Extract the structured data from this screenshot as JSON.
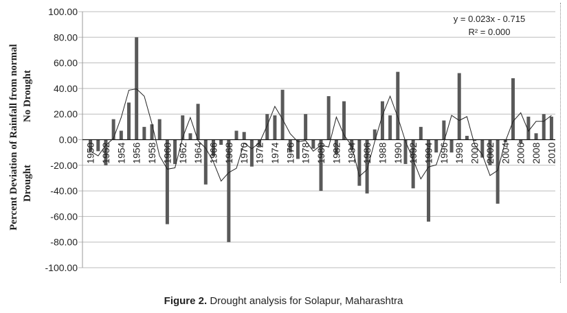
{
  "chart_data": {
    "type": "bar",
    "title": "",
    "ylabel": "Percent Deviation of Rainfall from normal",
    "ylabel_upper": "No Drought",
    "ylabel_lower": "Drought",
    "ylim": [
      -100,
      100
    ],
    "ytick_step": 20,
    "grid": true,
    "x_tick_every": 2,
    "x": [
      1950,
      1951,
      1952,
      1953,
      1954,
      1955,
      1956,
      1957,
      1958,
      1959,
      1960,
      1961,
      1962,
      1963,
      1964,
      1965,
      1966,
      1967,
      1968,
      1969,
      1970,
      1971,
      1972,
      1973,
      1974,
      1975,
      1976,
      1977,
      1978,
      1979,
      1980,
      1981,
      1982,
      1983,
      1984,
      1985,
      1986,
      1987,
      1988,
      1989,
      1990,
      1991,
      1992,
      1993,
      1994,
      1995,
      1996,
      1997,
      1998,
      1999,
      2000,
      2001,
      2002,
      2003,
      2004,
      2005,
      2006,
      2007,
      2008,
      2009,
      2010
    ],
    "values": [
      -9,
      -9,
      -20,
      16,
      7,
      29,
      80,
      10,
      12,
      16,
      -66,
      -19,
      19,
      5,
      28,
      -35,
      -13,
      -4,
      -80,
      7,
      6,
      -21,
      -6,
      20,
      19,
      39,
      -10,
      -15,
      20,
      -7,
      -40,
      34,
      -11,
      30,
      -8,
      -36,
      -42,
      8,
      30,
      19,
      53,
      -19,
      -38,
      10,
      -64,
      -10,
      15,
      -10,
      52,
      3,
      -1,
      -14,
      -20,
      -50,
      -2,
      48,
      -3,
      18,
      5,
      20,
      18
    ],
    "trendline_label": "y = 0.023x - 0.715",
    "r2_label": "R² = 0.000",
    "bar_color": "#595959",
    "line_color": "#222222"
  },
  "caption": {
    "bold": "Figure 2.",
    "text": " Drought analysis for Solapur, Maharashtra"
  }
}
